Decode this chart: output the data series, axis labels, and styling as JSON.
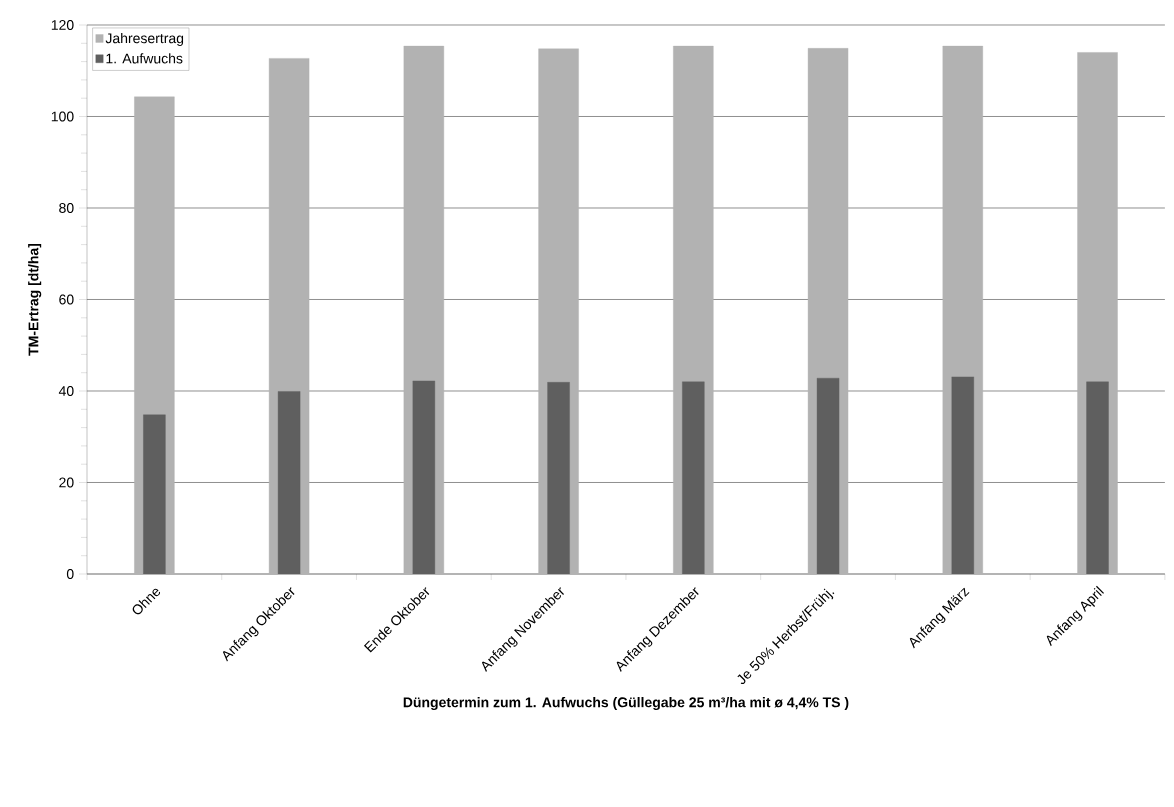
{
  "chart_data": {
    "type": "bar",
    "xlabel": "Düngetermin zum 1. Aufwuchs (Güllegabe 25 m³/ha mit ø 4,4% TS )",
    "ylabel": "TM-Ertrag [dt/ha]",
    "categories": [
      "Ohne",
      "Anfang  Oktober",
      "Ende Oktober",
      "Anfang November",
      "Anfang Dezember",
      "Je 50% Herbst/Frühj.",
      "Anfang März",
      "Anfang April"
    ],
    "series": [
      {
        "name": "Jahresertrag",
        "color": "#b2b2b2",
        "values": [
          104.3,
          112.7,
          115.4,
          114.8,
          115.4,
          114.9,
          115.4,
          114.0
        ]
      },
      {
        "name": "1. Aufwuchs",
        "color": "#5f5f5f",
        "values": [
          34.8,
          39.9,
          42.2,
          41.9,
          42.0,
          42.8,
          43.1,
          42.0
        ]
      }
    ],
    "ylim": [
      0,
      120
    ],
    "yticks": [
      0,
      20,
      40,
      60,
      80,
      100,
      120
    ],
    "grid": "y",
    "legend": "top left"
  }
}
